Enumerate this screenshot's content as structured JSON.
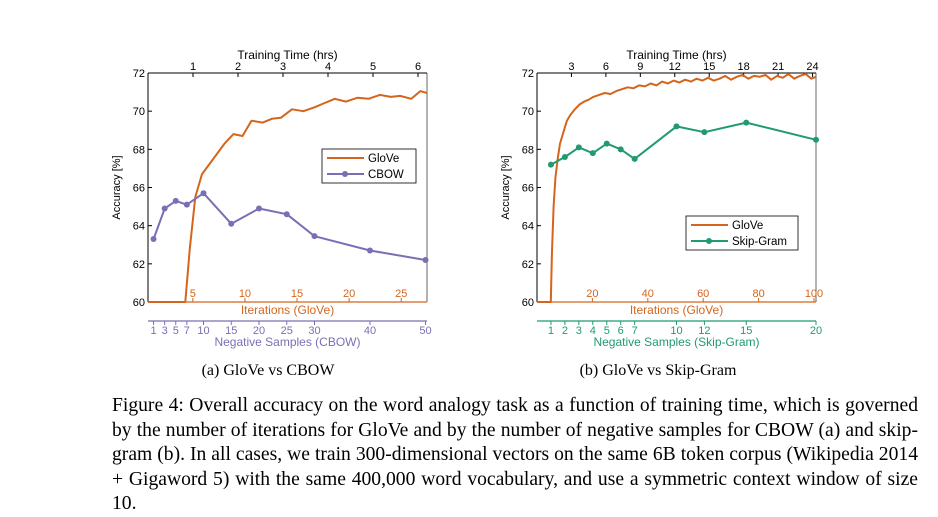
{
  "chart_data": [
    {
      "type": "line",
      "subcaption": "(a) GloVe vs CBOW",
      "ylabel": "Accuracy [%]",
      "ylim": [
        60,
        72
      ],
      "yticks": [
        60,
        62,
        64,
        66,
        68,
        70,
        72
      ],
      "top_axis": {
        "label": "Training Time (hrs)",
        "ticks": [
          1,
          2,
          3,
          4,
          5,
          6
        ]
      },
      "iterations_axis": {
        "label": "Iterations (GloVe)",
        "color": "#d4651c",
        "ticks": [
          5,
          10,
          15,
          20,
          25
        ]
      },
      "samples_axis": {
        "label": "Negative Samples (CBOW)",
        "color": "#7a6fb5",
        "ticks": [
          1,
          3,
          5,
          7,
          10,
          15,
          20,
          25,
          30,
          40,
          50
        ],
        "tick_labels": [
          "1",
          "3",
          "5",
          "7",
          "10",
          "15",
          "20",
          "25",
          "30",
          "40",
          "50"
        ]
      },
      "legend": {
        "placement": "center-right",
        "entries": [
          "GloVe",
          "CBOW"
        ]
      },
      "series": [
        {
          "name": "GloVe",
          "color": "#d4651c",
          "marker": "none",
          "x_axis": "training_time_hrs",
          "x": [
            0.0,
            0.83,
            0.93,
            1.05,
            1.2,
            1.45,
            1.7,
            1.9,
            2.1,
            2.3,
            2.55,
            2.75,
            2.95,
            3.2,
            3.45,
            3.7,
            3.9,
            4.15,
            4.4,
            4.65,
            4.9,
            5.15,
            5.4,
            5.6,
            5.85,
            6.05,
            6.2
          ],
          "y": [
            60.0,
            60.0,
            62.8,
            65.5,
            66.7,
            67.5,
            68.3,
            68.8,
            68.7,
            69.5,
            69.4,
            69.6,
            69.65,
            70.1,
            70.0,
            70.2,
            70.4,
            70.65,
            70.5,
            70.7,
            70.65,
            70.85,
            70.75,
            70.8,
            70.65,
            71.05,
            70.95
          ]
        },
        {
          "name": "CBOW",
          "color": "#7a6fb5",
          "marker": "circle",
          "x_axis": "negative_samples",
          "x": [
            1,
            3,
            5,
            7,
            10,
            15,
            20,
            25,
            30,
            40,
            50
          ],
          "y": [
            63.3,
            64.9,
            65.3,
            65.1,
            65.7,
            64.1,
            64.9,
            64.6,
            63.45,
            62.7,
            62.2
          ]
        }
      ]
    },
    {
      "type": "line",
      "subcaption": "(b) GloVe vs Skip-Gram",
      "ylabel": "Accuracy [%]",
      "ylim": [
        60,
        72
      ],
      "yticks": [
        60,
        62,
        64,
        66,
        68,
        70,
        72
      ],
      "top_axis": {
        "label": "Training Time (hrs)",
        "ticks": [
          3,
          6,
          9,
          12,
          15,
          18,
          21,
          24
        ]
      },
      "iterations_axis": {
        "label": "Iterations (GloVe)",
        "color": "#d4651c",
        "ticks": [
          20,
          40,
          60,
          80,
          100
        ]
      },
      "samples_axis": {
        "label": "Negative Samples (Skip-Gram)",
        "color": "#1f9a73",
        "ticks": [
          1,
          2,
          3,
          4,
          5,
          6,
          7,
          10,
          12,
          15,
          20
        ],
        "tick_labels": [
          "1",
          "2",
          "3",
          "4",
          "5",
          "6",
          "7",
          "10",
          "12",
          "15",
          "20"
        ]
      },
      "legend": {
        "placement": "center-right",
        "entries": [
          "GloVe",
          "Skip-Gram"
        ]
      },
      "series": [
        {
          "name": "GloVe",
          "color": "#d4651c",
          "marker": "none",
          "x_axis": "training_time_hrs",
          "x": [
            0.0,
            1.2,
            1.3,
            1.45,
            1.6,
            1.8,
            2.0,
            2.3,
            2.6,
            2.9,
            3.3,
            3.7,
            4.1,
            4.5,
            4.9,
            5.4,
            5.9,
            6.4,
            6.9,
            7.4,
            7.9,
            8.4,
            8.9,
            9.4,
            9.9,
            10.4,
            10.9,
            11.4,
            11.9,
            12.4,
            12.9,
            13.4,
            13.9,
            14.4,
            14.9,
            15.4,
            15.9,
            16.4,
            16.9,
            17.4,
            17.9,
            18.4,
            18.9,
            19.4,
            19.9,
            20.4,
            20.9,
            21.4,
            21.9,
            22.4,
            22.9,
            23.4,
            23.9,
            24.3
          ],
          "y": [
            60.0,
            60.0,
            62.5,
            65.0,
            66.5,
            67.5,
            68.3,
            68.9,
            69.5,
            69.8,
            70.1,
            70.35,
            70.5,
            70.6,
            70.75,
            70.85,
            70.95,
            70.9,
            71.05,
            71.15,
            71.25,
            71.2,
            71.35,
            71.3,
            71.45,
            71.35,
            71.55,
            71.45,
            71.6,
            71.5,
            71.65,
            71.55,
            71.7,
            71.6,
            71.75,
            71.6,
            71.7,
            71.85,
            71.65,
            71.8,
            71.9,
            71.7,
            71.85,
            71.8,
            71.9,
            71.65,
            71.85,
            71.75,
            71.95,
            71.7,
            71.85,
            71.95,
            71.7,
            71.8
          ]
        },
        {
          "name": "Skip-Gram",
          "color": "#1f9a73",
          "marker": "circle",
          "x_axis": "negative_samples",
          "x": [
            1,
            2,
            3,
            4,
            5,
            6,
            7,
            10,
            12,
            15,
            20
          ],
          "y": [
            67.2,
            67.6,
            68.1,
            67.8,
            68.3,
            68.0,
            67.5,
            69.2,
            68.9,
            69.4,
            68.5
          ]
        }
      ]
    }
  ],
  "caption": "Figure 4: Overall accuracy on the word analogy task as a function of training time, which is governed by the number of iterations for GloVe and by the number of negative samples for CBOW (a) and skip-gram (b).  In all cases, we train 300-dimensional vectors on the same 6B token corpus (Wikipedia 2014 + Gigaword 5) with the same 400,000 word vocabulary, and use a symmetric context window of size 10."
}
